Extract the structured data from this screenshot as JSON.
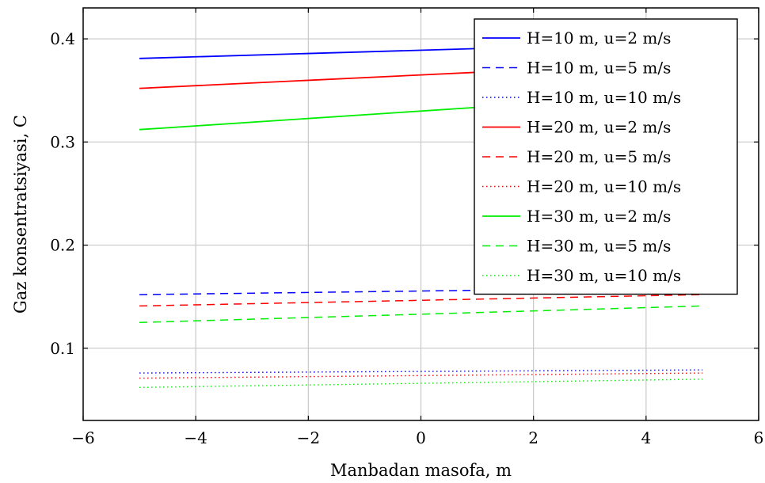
{
  "chart_data": {
    "type": "line",
    "title": "",
    "xlabel": "Manbadan masofa, m",
    "ylabel": "Gaz konsentratsiyasi, C",
    "xlim": [
      -6,
      6
    ],
    "ylim": [
      0.03,
      0.43
    ],
    "xticks": [
      -6,
      -4,
      -2,
      0,
      2,
      4,
      6
    ],
    "yticks": [
      0.1,
      0.2,
      0.3,
      0.4
    ],
    "xtick_labels": [
      "−6",
      "−4",
      "−2",
      "0",
      "2",
      "4",
      "6"
    ],
    "ytick_labels": [
      "0.1",
      "0.2",
      "0.3",
      "0.4"
    ],
    "grid": true,
    "legend_position": "top-right",
    "x": [
      -5,
      5
    ],
    "series": [
      {
        "name": "H=10 m, u=2 m/s",
        "color": "#0000ff",
        "style": "solid",
        "values": [
          0.381,
          0.397
        ]
      },
      {
        "name": "H=10 m, u=5 m/s",
        "color": "#0000ff",
        "style": "dashed",
        "values": [
          0.152,
          0.159
        ]
      },
      {
        "name": "H=10 m, u=10 m/s",
        "color": "#0000ff",
        "style": "dotted",
        "values": [
          0.076,
          0.079
        ]
      },
      {
        "name": "H=20 m, u=2 m/s",
        "color": "#ff0000",
        "style": "solid",
        "values": [
          0.352,
          0.378
        ]
      },
      {
        "name": "H=20 m, u=5 m/s",
        "color": "#ff0000",
        "style": "dashed",
        "values": [
          0.141,
          0.152
        ]
      },
      {
        "name": "H=20 m, u=10 m/s",
        "color": "#ff0000",
        "style": "dotted",
        "values": [
          0.071,
          0.076
        ]
      },
      {
        "name": "H=30 m, u=2 m/s",
        "color": "#00ee00",
        "style": "solid",
        "values": [
          0.312,
          0.348
        ]
      },
      {
        "name": "H=30 m, u=5 m/s",
        "color": "#00ee00",
        "style": "dashed",
        "values": [
          0.125,
          0.141
        ]
      },
      {
        "name": "H=30 m, u=10 m/s",
        "color": "#00ee00",
        "style": "dotted",
        "values": [
          0.062,
          0.07
        ]
      }
    ]
  }
}
